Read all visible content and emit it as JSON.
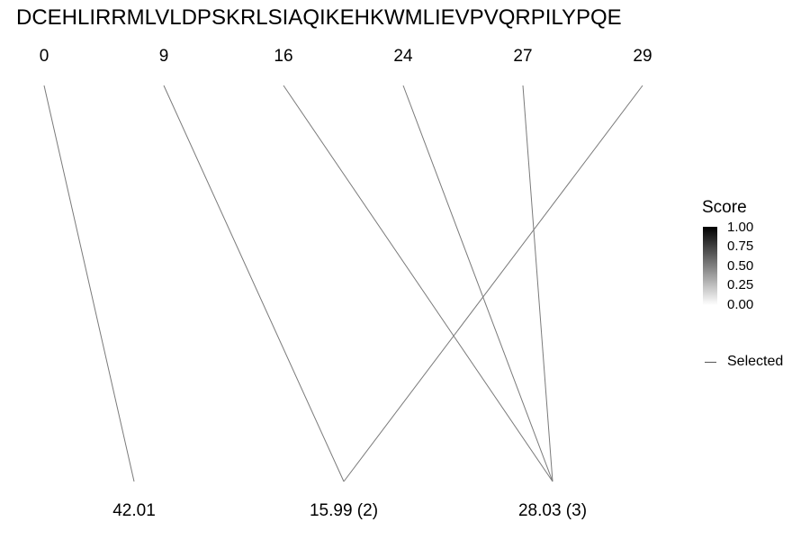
{
  "sequence": "DCEHLIRRMLVLDPSKRLSIAQIKEHKWMLIEVPVQRPILYPQE",
  "positions": [
    "0",
    "9",
    "16",
    "24",
    "27",
    "29"
  ],
  "masses": [
    "42.01",
    "15.99 (2)",
    "28.03 (3)"
  ],
  "links": [
    {
      "position": "0",
      "mass": "42.01"
    },
    {
      "position": "9",
      "mass": "15.99 (2)"
    },
    {
      "position": "29",
      "mass": "15.99 (2)"
    },
    {
      "position": "16",
      "mass": "28.03 (3)"
    },
    {
      "position": "24",
      "mass": "28.03 (3)"
    },
    {
      "position": "27",
      "mass": "28.03 (3)"
    }
  ],
  "legend": {
    "title": "Score",
    "ticks": [
      "1.00",
      "0.75",
      "0.50",
      "0.25",
      "0.00"
    ],
    "selected_label": "Selected",
    "gradient_colors": [
      "#000000",
      "#ffffff"
    ],
    "line_color": "#7a7a7a"
  }
}
